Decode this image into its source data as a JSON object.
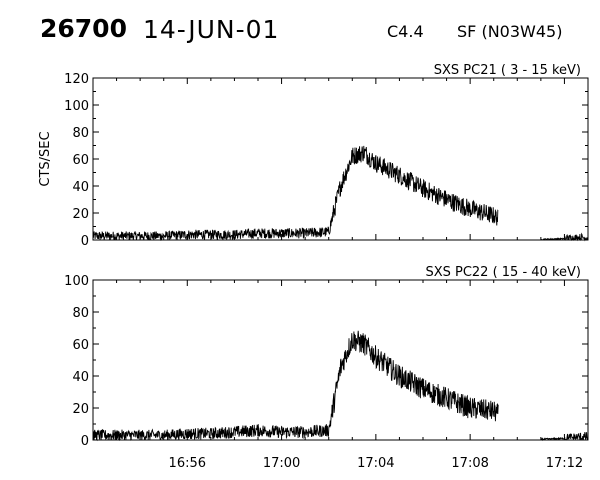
{
  "header": {
    "event_number": "26700",
    "date": "14-JUN-01",
    "goes_class": "C4.4",
    "flare_location": "SF (N03W45)"
  },
  "chart_data": [
    {
      "type": "line",
      "title": "SXS PC21  (  3 - 15 keV)",
      "ylabel": "CTS/SEC",
      "xlim": [
        "16:52",
        "17:13"
      ],
      "ylim": [
        0,
        120
      ],
      "y_ticks": [
        0,
        20,
        40,
        60,
        80,
        100,
        120
      ],
      "x_ticks": [
        "16:56",
        "17:00",
        "17:04",
        "17:08",
        "17:12"
      ],
      "series": [
        {
          "x": [
            "16:52",
            "16:53",
            "16:54",
            "16:55",
            "16:56",
            "16:57",
            "16:58",
            "16:59",
            "17:00",
            "17:01",
            "17:02",
            "17:02.5",
            "17:03",
            "17:03.5",
            "17:04",
            "17:05",
            "17:06",
            "17:07",
            "17:08",
            "17:09",
            "17:09.2",
            "17:10",
            "17:11",
            "17:12",
            "17:13"
          ],
          "values": [
            3,
            3,
            3,
            3,
            4,
            4,
            4,
            5,
            5,
            5,
            6,
            40,
            62,
            65,
            57,
            48,
            38,
            30,
            23,
            18,
            16,
            null,
            0.5,
            1,
            2
          ],
          "noise": 7
        }
      ]
    },
    {
      "type": "line",
      "title": "SXS PC22  ( 15 - 40 keV)",
      "ylabel": "",
      "xlim": [
        "16:52",
        "17:13"
      ],
      "ylim": [
        0,
        100
      ],
      "y_ticks": [
        0,
        20,
        40,
        60,
        80,
        100
      ],
      "x_ticks": [
        "16:56",
        "17:00",
        "17:04",
        "17:08",
        "17:12"
      ],
      "series": [
        {
          "x": [
            "16:52",
            "16:53",
            "16:54",
            "16:55",
            "16:56",
            "16:57",
            "16:58",
            "16:59",
            "17:00",
            "17:01",
            "17:02",
            "17:02.5",
            "17:03",
            "17:03.5",
            "17:04",
            "17:05",
            "17:06",
            "17:07",
            "17:08",
            "17:09",
            "17:09.2",
            "17:10",
            "17:11",
            "17:12",
            "17:13"
          ],
          "values": [
            3,
            3,
            3,
            3,
            4,
            4,
            5,
            6,
            5,
            5,
            6,
            45,
            63,
            60,
            52,
            40,
            32,
            26,
            20,
            18,
            16,
            null,
            0.5,
            1,
            2
          ],
          "noise": 7
        }
      ]
    }
  ]
}
